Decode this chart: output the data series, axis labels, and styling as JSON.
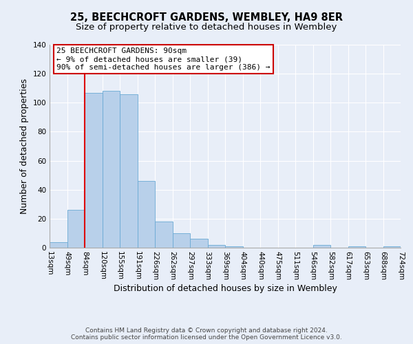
{
  "title": "25, BEECHCROFT GARDENS, WEMBLEY, HA9 8ER",
  "subtitle": "Size of property relative to detached houses in Wembley",
  "xlabel": "Distribution of detached houses by size in Wembley",
  "ylabel": "Number of detached properties",
  "bar_values": [
    4,
    26,
    107,
    108,
    106,
    46,
    18,
    10,
    6,
    2,
    1,
    0,
    0,
    0,
    0,
    2,
    0,
    1,
    0,
    1
  ],
  "bin_labels": [
    "13sqm",
    "49sqm",
    "84sqm",
    "120sqm",
    "155sqm",
    "191sqm",
    "226sqm",
    "262sqm",
    "297sqm",
    "333sqm",
    "369sqm",
    "404sqm",
    "440sqm",
    "475sqm",
    "511sqm",
    "546sqm",
    "582sqm",
    "617sqm",
    "653sqm",
    "688sqm",
    "724sqm"
  ],
  "bar_color": "#b8d0ea",
  "bar_edge_color": "#6aaad4",
  "bar_linewidth": 0.6,
  "ylim": [
    0,
    140
  ],
  "yticks": [
    0,
    20,
    40,
    60,
    80,
    100,
    120,
    140
  ],
  "red_line_x": 2,
  "annotation_title": "25 BEECHCROFT GARDENS: 90sqm",
  "annotation_line1": "← 9% of detached houses are smaller (39)",
  "annotation_line2": "90% of semi-detached houses are larger (386) →",
  "annotation_box_color": "#ffffff",
  "annotation_box_edge": "#cc0000",
  "footnote1": "Contains HM Land Registry data © Crown copyright and database right 2024.",
  "footnote2": "Contains public sector information licensed under the Open Government Licence v3.0.",
  "background_color": "#e8eef8",
  "grid_color": "#ffffff",
  "title_fontsize": 10.5,
  "subtitle_fontsize": 9.5,
  "axis_label_fontsize": 9,
  "tick_fontsize": 7.5,
  "footnote_fontsize": 6.5,
  "annotation_fontsize": 8.0
}
